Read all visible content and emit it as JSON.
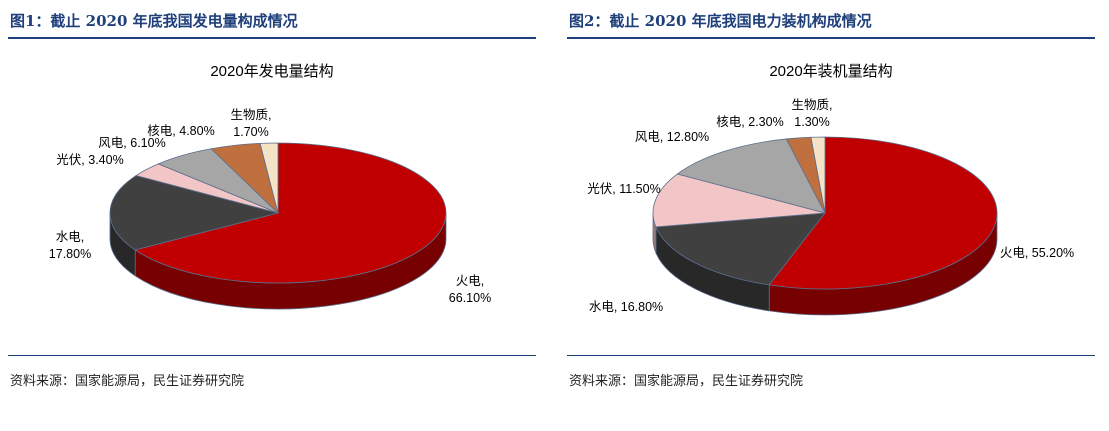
{
  "figures": [
    {
      "heading": "图1：截止 2020 年底我国发电量构成情况",
      "source": "资料来源：国家能源局，民生证券研究院",
      "chart_data": {
        "type": "pie",
        "title": "2020年发电量结构",
        "slices": [
          {
            "name": "火电",
            "value": 66.1,
            "label_line1": "火电,",
            "label_line2": "66.10%",
            "color": "#c00000"
          },
          {
            "name": "水电",
            "value": 17.8,
            "label_line1": "水电,",
            "label_line2": "17.80%",
            "color": "#404040"
          },
          {
            "name": "光伏",
            "value": 3.4,
            "label_line1": "光伏, 3.40%",
            "label_line2": "",
            "color": "#f2c6c6"
          },
          {
            "name": "风电",
            "value": 6.1,
            "label_line1": "风电, 6.10%",
            "label_line2": "",
            "color": "#a6a6a6"
          },
          {
            "name": "核电",
            "value": 4.8,
            "label_line1": "核电, 4.80%",
            "label_line2": "",
            "color": "#c0703e"
          },
          {
            "name": "生物质",
            "value": 1.7,
            "label_line1": "生物质,",
            "label_line2": "1.70%",
            "color": "#f5e3c8"
          }
        ]
      }
    },
    {
      "heading": "图2：截止 2020 年底我国电力装机构成情况",
      "source": "资料来源：国家能源局，民生证券研究院",
      "chart_data": {
        "type": "pie",
        "title": "2020年装机量结构",
        "slices": [
          {
            "name": "火电",
            "value": 55.2,
            "label_line1": "火电, 55.20%",
            "label_line2": "",
            "color": "#c00000"
          },
          {
            "name": "水电",
            "value": 16.8,
            "label_line1": "水电, 16.80%",
            "label_line2": "",
            "color": "#404040"
          },
          {
            "name": "光伏",
            "value": 11.5,
            "label_line1": "光伏, 11.50%",
            "label_line2": "",
            "color": "#f2c6c6"
          },
          {
            "name": "风电",
            "value": 12.8,
            "label_line1": "风电, 12.80%",
            "label_line2": "",
            "color": "#a6a6a6"
          },
          {
            "name": "核电",
            "value": 2.3,
            "label_line1": "核电, 2.30%",
            "label_line2": "",
            "color": "#c0703e"
          },
          {
            "name": "生物质",
            "value": 1.3,
            "label_line1": "生物质,",
            "label_line2": "1.30%",
            "color": "#f5e3c8"
          }
        ]
      }
    }
  ]
}
